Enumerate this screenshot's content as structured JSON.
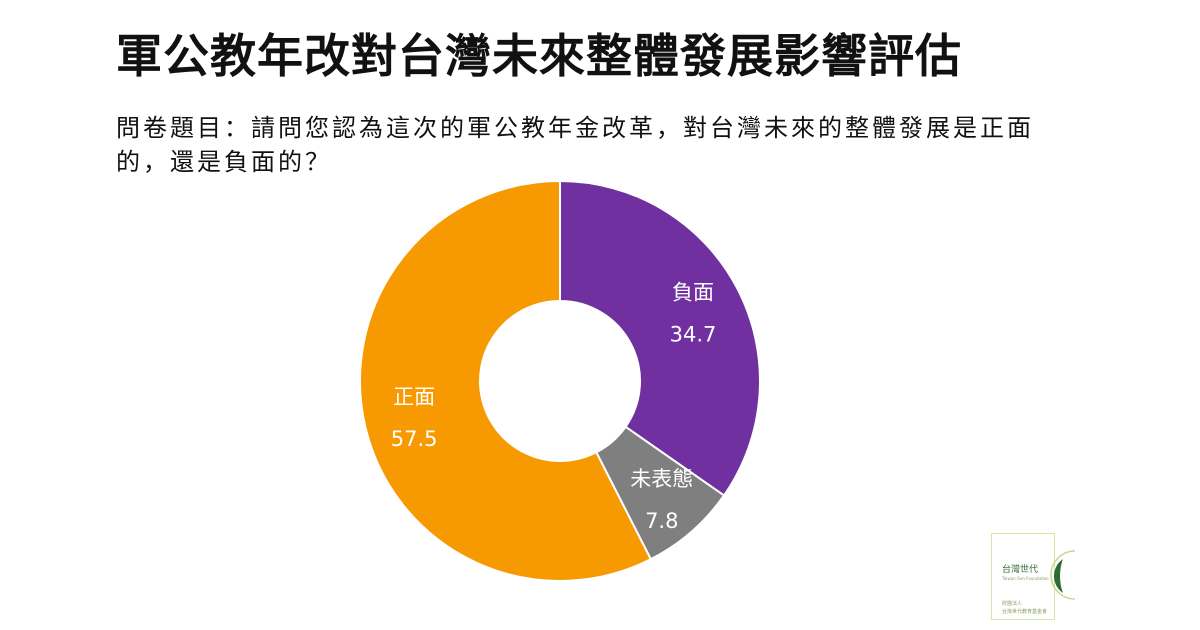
{
  "title": "軍公教年改對台灣未來整體發展影響評估",
  "question": "問卷題目：請問您認為這次的軍公教年金改革，對台灣未來的整體發展是正面的，還是負面的？",
  "chart_data": {
    "type": "pie",
    "subtype": "donut",
    "title": "",
    "slices": [
      {
        "label": "負面",
        "value": 34.7,
        "color": "#7030a0"
      },
      {
        "label": "未表態",
        "value": 7.8,
        "color": "#7f7f7f"
      },
      {
        "label": "正面",
        "value": 57.5,
        "color": "#f79900"
      }
    ],
    "start": "12 o'clock",
    "direction": "clockwise",
    "legend": "none"
  },
  "logo": {
    "name": "台灣世代",
    "sub": "Taiwan Gen Foundation",
    "org_line1": "財團法人",
    "org_line2": "台灣世代教育基金會",
    "accent": "#2e6b33"
  }
}
